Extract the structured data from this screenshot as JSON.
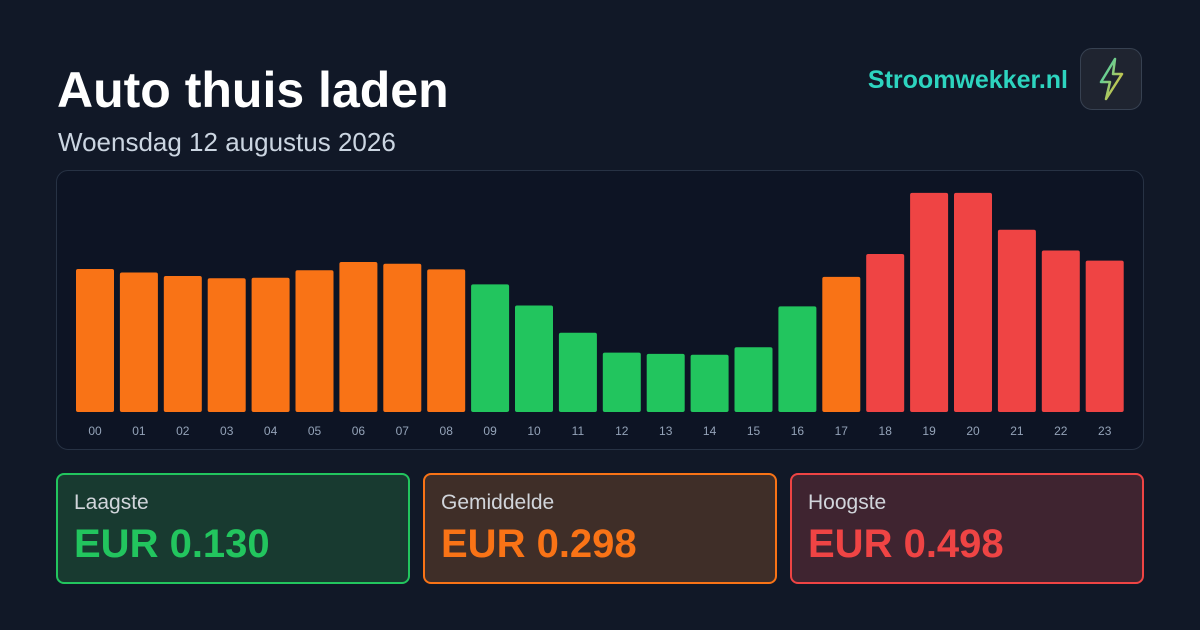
{
  "header": {
    "title": "Auto thuis laden",
    "subtitle": "Woensdag 12 augustus 2026",
    "brand": "Stroomwekker.nl",
    "logo_icon": "lightning-bolt-icon"
  },
  "colors": {
    "low": "#22c55e",
    "mid": "#f97316",
    "high": "#ef4444",
    "brand": "#2dd4bf"
  },
  "chart_data": {
    "type": "bar",
    "title": "",
    "xlabel": "",
    "ylabel": "",
    "ylim": [
      0,
      0.5
    ],
    "grid": false,
    "legend": "none",
    "categories": [
      "00",
      "01",
      "02",
      "03",
      "04",
      "05",
      "06",
      "07",
      "08",
      "09",
      "10",
      "11",
      "12",
      "13",
      "14",
      "15",
      "16",
      "17",
      "18",
      "19",
      "20",
      "21",
      "22",
      "23"
    ],
    "values": [
      0.325,
      0.317,
      0.309,
      0.304,
      0.305,
      0.322,
      0.341,
      0.337,
      0.324,
      0.29,
      0.242,
      0.18,
      0.135,
      0.132,
      0.13,
      0.147,
      0.24,
      0.307,
      0.359,
      0.498,
      0.498,
      0.414,
      0.367,
      0.344
    ],
    "levels": [
      "mid",
      "mid",
      "mid",
      "mid",
      "mid",
      "mid",
      "mid",
      "mid",
      "mid",
      "low",
      "low",
      "low",
      "low",
      "low",
      "low",
      "low",
      "low",
      "mid",
      "high",
      "high",
      "high",
      "high",
      "high",
      "high"
    ]
  },
  "stats": {
    "low": {
      "label": "Laagste",
      "value": "EUR 0.130"
    },
    "avg": {
      "label": "Gemiddelde",
      "value": "EUR 0.298"
    },
    "high": {
      "label": "Hoogste",
      "value": "EUR 0.498"
    }
  }
}
